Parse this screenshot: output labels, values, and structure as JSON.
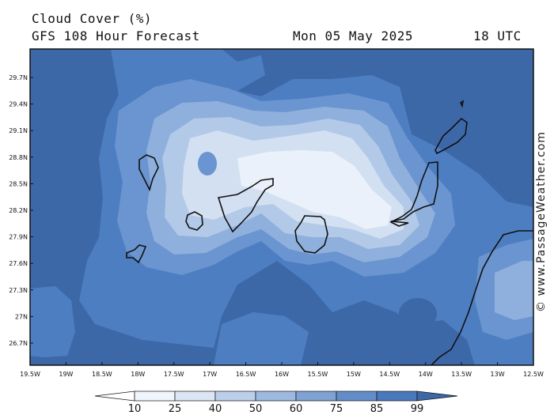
{
  "header": {
    "title": "Cloud Cover (%)",
    "subtitle": "GFS 108 Hour Forecast",
    "date": "Mon 05 May 2025",
    "time": "18 UTC"
  },
  "axes": {
    "lat_labels": [
      "29.7N",
      "29.4N",
      "29.1N",
      "28.8N",
      "28.5N",
      "28.2N",
      "27.9N",
      "27.6N",
      "27.3N",
      "27N",
      "26.7N"
    ],
    "lon_labels": [
      "19.5W",
      "19W",
      "18.5W",
      "18W",
      "17.5W",
      "17W",
      "16.5W",
      "16W",
      "15.5W",
      "15W",
      "14.5W",
      "14W",
      "13.5W",
      "13W",
      "12.5W"
    ]
  },
  "legend": {
    "labels": [
      "10",
      "25",
      "40",
      "50",
      "60",
      "75",
      "85",
      "99"
    ],
    "colors": [
      "#ffffff",
      "#f0f4fc",
      "#dbe5f4",
      "#bccfea",
      "#9db9e0",
      "#7fa2d3",
      "#628dc8",
      "#4a78bd",
      "#3d68a8"
    ]
  },
  "palette": {
    "c85": "#3d68a8",
    "c75": "#4e7ec2",
    "c60": "#6b95d0",
    "c50": "#8fb0dc",
    "c40": "#b2c9e8",
    "c25": "#d2e0f2",
    "c10": "#eaf1fa",
    "coast": "#111111"
  },
  "watermark": "© www.PassageWeather.com"
}
